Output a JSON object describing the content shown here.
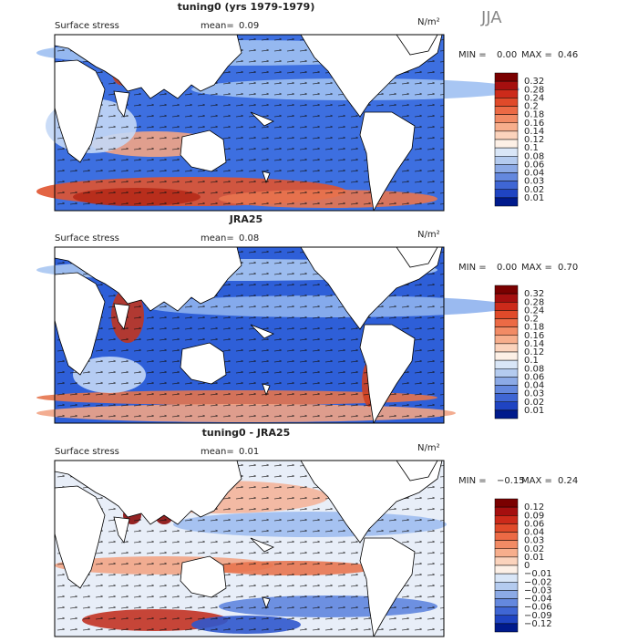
{
  "season": "JJA",
  "panels": [
    {
      "title": "tuning0 (yrs 1979-1979)",
      "variable": "Surface stress",
      "mean_label": "mean=",
      "mean": "0.09",
      "units": "N/m²",
      "min_label": "MIN =",
      "min": "0.00",
      "max_label": "MAX =",
      "max": "0.46",
      "colorbar_labels": [
        "0.32",
        "0.28",
        "0.24",
        "0.2",
        "0.18",
        "0.16",
        "0.14",
        "0.12",
        "0.1",
        "0.08",
        "0.06",
        "0.04",
        "0.03",
        "0.02",
        "0.01"
      ]
    },
    {
      "title": "JRA25",
      "variable": "Surface stress",
      "mean_label": "mean=",
      "mean": "0.08",
      "units": "N/m²",
      "min_label": "MIN =",
      "min": "0.00",
      "max_label": "MAX =",
      "max": "0.70",
      "colorbar_labels": [
        "0.32",
        "0.28",
        "0.24",
        "0.2",
        "0.18",
        "0.16",
        "0.14",
        "0.12",
        "0.1",
        "0.08",
        "0.06",
        "0.04",
        "0.03",
        "0.02",
        "0.01"
      ]
    },
    {
      "title": "tuning0 - JRA25",
      "variable": "Surface stress",
      "mean_label": "mean=",
      "mean": "0.01",
      "units": "N/m²",
      "min_label": "MIN =",
      "min": "−0.15",
      "max_label": "MAX =",
      "max": "0.24",
      "colorbar_labels": [
        "0.12",
        "0.09",
        "0.06",
        "0.04",
        "0.03",
        "0.02",
        "0.01",
        "0",
        "−0.01",
        "−0.02",
        "−0.03",
        "−0.04",
        "−0.06",
        "−0.09",
        "−0.12"
      ]
    }
  ]
}
